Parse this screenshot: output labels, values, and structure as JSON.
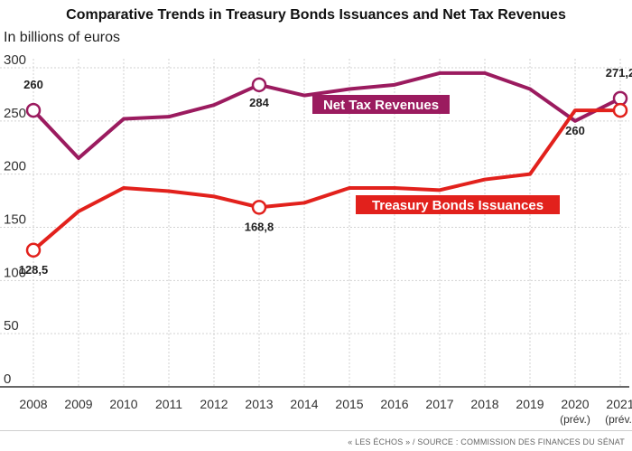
{
  "chart_data": {
    "type": "line",
    "title": "Comparative Trends in Treasury Bonds Issuances and Net Tax Revenues",
    "subtitle": "In billions of euros",
    "xlabel": "",
    "ylabel": "",
    "ylim": [
      0,
      300
    ],
    "yticks": [
      0,
      50,
      100,
      150,
      200,
      250,
      300
    ],
    "grid": true,
    "x": [
      "2008",
      "2009",
      "2010",
      "2011",
      "2012",
      "2013",
      "2014",
      "2015",
      "2016",
      "2017",
      "2018",
      "2019",
      "2020",
      "2021"
    ],
    "x_sublabels": [
      "",
      "",
      "",
      "",
      "",
      "",
      "",
      "",
      "",
      "",
      "",
      "",
      "(prév.)",
      "(prév.)"
    ],
    "series": [
      {
        "name": "Net Tax Revenues",
        "color": "#9b1b5f",
        "values": [
          260,
          215,
          252,
          254,
          265,
          284,
          274,
          280,
          284,
          295,
          295,
          280,
          250,
          271.2
        ],
        "highlight_indices": [
          0,
          5,
          13
        ],
        "point_labels": {
          "0": "260",
          "5": "284",
          "13": "271,2"
        }
      },
      {
        "name": "Treasury Bonds Issuances",
        "color": "#e2211c",
        "values": [
          128.5,
          165,
          187,
          184,
          179,
          168.8,
          173,
          187,
          187,
          185,
          195,
          200,
          260,
          260
        ],
        "highlight_indices": [
          0,
          5,
          13
        ],
        "point_labels": {
          "0": "128,5",
          "5": "168,8",
          "12": "260"
        }
      }
    ]
  },
  "footer": "« LES ÉCHOS » / SOURCE : COMMISSION DES FINANCES DU SÉNAT"
}
